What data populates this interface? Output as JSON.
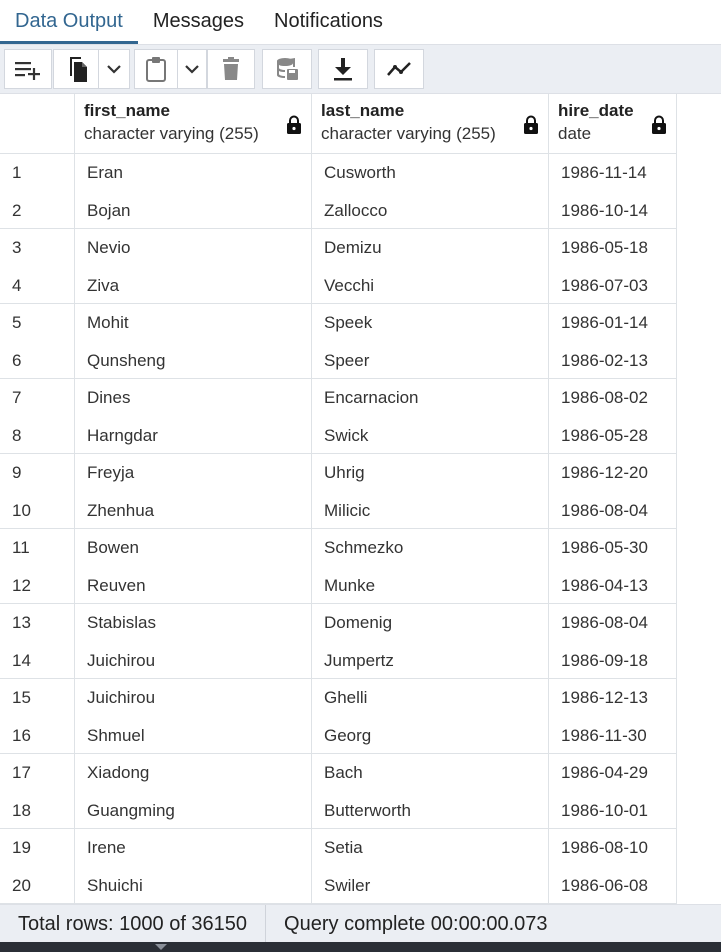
{
  "tabs": [
    {
      "label": "Data Output",
      "active": true
    },
    {
      "label": "Messages",
      "active": false
    },
    {
      "label": "Notifications",
      "active": false
    }
  ],
  "toolbar": {
    "buttons": [
      {
        "icon": "add-row-icon"
      },
      {
        "icon": "copy-icon"
      },
      {
        "icon": "chevron-down-icon"
      },
      {
        "icon": "paste-icon"
      },
      {
        "icon": "chevron-down-icon"
      },
      {
        "icon": "delete-icon"
      },
      {
        "icon": "save-data-icon"
      },
      {
        "icon": "download-icon"
      },
      {
        "icon": "graph-visualiser-icon"
      }
    ]
  },
  "columns": [
    {
      "name": "first_name",
      "type": "character varying (255)",
      "locked": true
    },
    {
      "name": "last_name",
      "type": "character varying (255)",
      "locked": true
    },
    {
      "name": "hire_date",
      "type": "date",
      "locked": true
    }
  ],
  "rows": [
    {
      "n": "1",
      "first_name": "Eran",
      "last_name": "Cusworth",
      "hire_date": "1986-11-14"
    },
    {
      "n": "2",
      "first_name": "Bojan",
      "last_name": "Zallocco",
      "hire_date": "1986-10-14"
    },
    {
      "n": "3",
      "first_name": "Nevio",
      "last_name": "Demizu",
      "hire_date": "1986-05-18"
    },
    {
      "n": "4",
      "first_name": "Ziva",
      "last_name": "Vecchi",
      "hire_date": "1986-07-03"
    },
    {
      "n": "5",
      "first_name": "Mohit",
      "last_name": "Speek",
      "hire_date": "1986-01-14"
    },
    {
      "n": "6",
      "first_name": "Qunsheng",
      "last_name": "Speer",
      "hire_date": "1986-02-13"
    },
    {
      "n": "7",
      "first_name": "Dines",
      "last_name": "Encarnacion",
      "hire_date": "1986-08-02"
    },
    {
      "n": "8",
      "first_name": "Harngdar",
      "last_name": "Swick",
      "hire_date": "1986-05-28"
    },
    {
      "n": "9",
      "first_name": "Freyja",
      "last_name": "Uhrig",
      "hire_date": "1986-12-20"
    },
    {
      "n": "10",
      "first_name": "Zhenhua",
      "last_name": "Milicic",
      "hire_date": "1986-08-04"
    },
    {
      "n": "11",
      "first_name": "Bowen",
      "last_name": "Schmezko",
      "hire_date": "1986-05-30"
    },
    {
      "n": "12",
      "first_name": "Reuven",
      "last_name": "Munke",
      "hire_date": "1986-04-13"
    },
    {
      "n": "13",
      "first_name": "Stabislas",
      "last_name": "Domenig",
      "hire_date": "1986-08-04"
    },
    {
      "n": "14",
      "first_name": "Juichirou",
      "last_name": "Jumpertz",
      "hire_date": "1986-09-18"
    },
    {
      "n": "15",
      "first_name": "Juichirou",
      "last_name": "Ghelli",
      "hire_date": "1986-12-13"
    },
    {
      "n": "16",
      "first_name": "Shmuel",
      "last_name": "Georg",
      "hire_date": "1986-11-30"
    },
    {
      "n": "17",
      "first_name": "Xiadong",
      "last_name": "Bach",
      "hire_date": "1986-04-29"
    },
    {
      "n": "18",
      "first_name": "Guangming",
      "last_name": "Butterworth",
      "hire_date": "1986-10-01"
    },
    {
      "n": "19",
      "first_name": "Irene",
      "last_name": "Setia",
      "hire_date": "1986-08-10"
    },
    {
      "n": "20",
      "first_name": "Shuichi",
      "last_name": "Swiler",
      "hire_date": "1986-06-08"
    }
  ],
  "status": {
    "total_rows": "Total rows: 1000 of 36150",
    "query": "Query complete 00:00:00.073"
  },
  "colors": {
    "accent": "#326690",
    "toolbar_bg": "#ebeef3",
    "grid_line": "#dee2e6"
  }
}
